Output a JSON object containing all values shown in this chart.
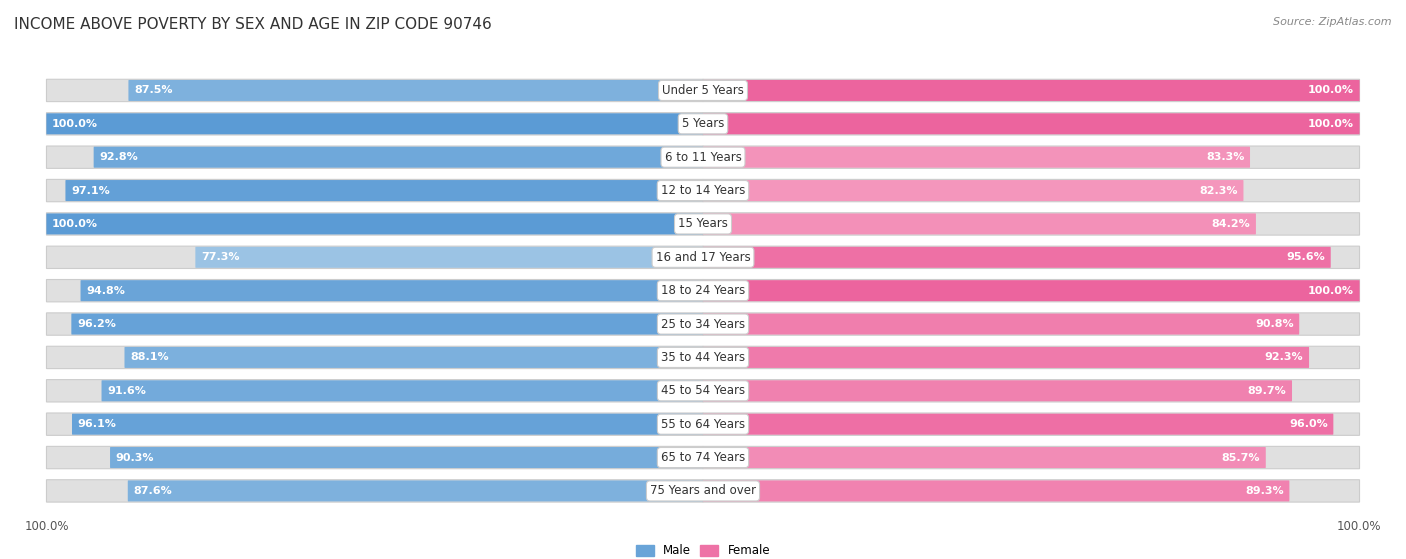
{
  "title": "INCOME ABOVE POVERTY BY SEX AND AGE IN ZIP CODE 90746",
  "source": "Source: ZipAtlas.com",
  "categories": [
    "Under 5 Years",
    "5 Years",
    "6 to 11 Years",
    "12 to 14 Years",
    "15 Years",
    "16 and 17 Years",
    "18 to 24 Years",
    "25 to 34 Years",
    "35 to 44 Years",
    "45 to 54 Years",
    "55 to 64 Years",
    "65 to 74 Years",
    "75 Years and over"
  ],
  "male_values": [
    87.5,
    100.0,
    92.8,
    97.1,
    100.0,
    77.3,
    94.8,
    96.2,
    88.1,
    91.6,
    96.1,
    90.3,
    87.6
  ],
  "female_values": [
    100.0,
    100.0,
    83.3,
    82.3,
    84.2,
    95.6,
    100.0,
    90.8,
    92.3,
    89.7,
    96.0,
    85.7,
    89.3
  ],
  "male_color_high": "#6aaed6",
  "male_color_low": "#afd0e9",
  "female_color_high": "#f472a0",
  "female_color_low": "#f9b8d0",
  "male_label": "Male",
  "female_label": "Female",
  "background_color": "#ffffff",
  "row_bg_color": "#e8e8e8",
  "title_fontsize": 11,
  "source_fontsize": 8,
  "value_fontsize": 8,
  "cat_fontsize": 8.5,
  "tick_fontsize": 8.5,
  "xlim_left": -105,
  "xlim_right": 105
}
